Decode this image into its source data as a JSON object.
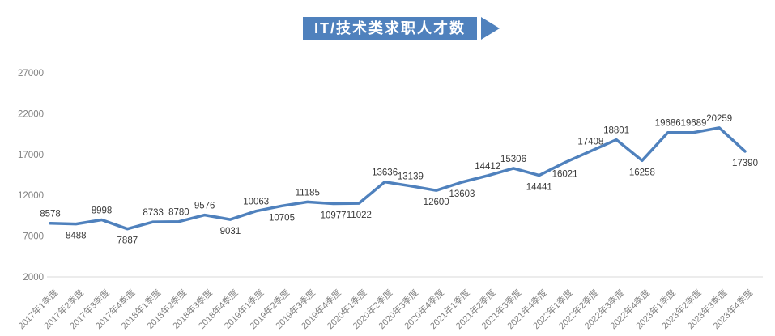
{
  "title": {
    "text": "IT/技术类求职人才数"
  },
  "colors": {
    "accent": "#4f81bd",
    "line": "#4f81bd",
    "banner_bg": "#4f81bd",
    "banner_text": "#ffffff",
    "axis_text": "#808080",
    "data_label": "#3a3a3a",
    "axis_line": "#d9d9d9"
  },
  "chart_data": {
    "type": "line",
    "title": "IT/技术类求职人才数",
    "categories": [
      "2017年1季度",
      "2017年2季度",
      "2017年3季度",
      "2017年4季度",
      "2018年1季度",
      "2018年2季度",
      "2018年3季度",
      "2018年4季度",
      "2019年1季度",
      "2019年2季度",
      "2019年3季度",
      "2019年4季度",
      "2020年1季度",
      "2020年2季度",
      "2020年3季度",
      "2020年4季度",
      "2021年1季度",
      "2021年2季度",
      "2021年3季度",
      "2021年4季度",
      "2022年1季度",
      "2022年2季度",
      "2022年3季度",
      "2022年4季度",
      "2023年1季度",
      "2023年2季度",
      "2023年3季度",
      "2023年4季度"
    ],
    "values": [
      8578,
      8488,
      8998,
      7887,
      8733,
      8780,
      9576,
      9031,
      10063,
      10705,
      11185,
      10977,
      11022,
      13636,
      13139,
      12600,
      13603,
      14412,
      15306,
      14441,
      16021,
      17408,
      18801,
      16258,
      19686,
      19689,
      20259,
      17390
    ],
    "label_positions": [
      "above",
      "below",
      "above",
      "below",
      "above",
      "above",
      "above",
      "below",
      "above",
      "below",
      "above",
      "below",
      "below",
      "above",
      "above",
      "below",
      "below",
      "above",
      "above",
      "below",
      "below",
      "above",
      "above",
      "below",
      "above",
      "above",
      "above",
      "below"
    ],
    "y_ticks": [
      2000,
      7000,
      12000,
      17000,
      22000,
      27000
    ],
    "ylim": [
      2000,
      27000
    ],
    "xlabel": "",
    "ylabel": "",
    "grid": false,
    "legend": "none",
    "data_labels_visible": true
  }
}
